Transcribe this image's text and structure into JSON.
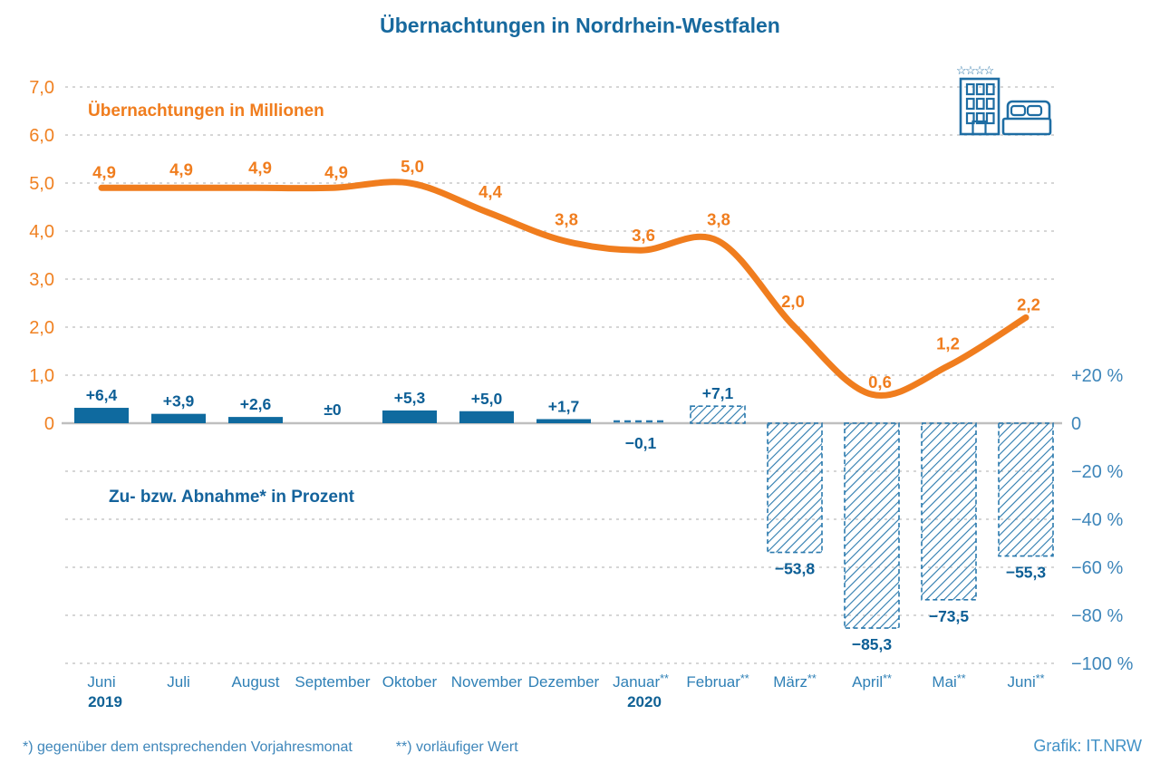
{
  "title": "Übernachtungen in Nordrhein-Westfalen",
  "credit": "Grafik: IT.NRW",
  "footnotes": {
    "first": "*)  gegenüber dem entsprechenden Vorjahresmonat",
    "second": "**)  vorläufiger Wert"
  },
  "icons": {
    "hotel_stars": 4
  },
  "colors": {
    "title_blue": "#17699e",
    "bar_blue": "#0f6a9f",
    "hatch_blue": "#2a79ad",
    "value_label_blue": "#0d5f96",
    "axis_text_blue": "#3e86ba",
    "line_orange": "#f07d1e",
    "axis_text_orange": "#f08122",
    "gridline_gray": "#c9c9c9",
    "zeroline_gray": "#bfbfbf",
    "icon_blue": "#1e6da3",
    "credit_blue": "#4191c6"
  },
  "chart_data": {
    "type": "combo-line-bar",
    "categories": [
      "Juni 2019",
      "Juli",
      "August",
      "September",
      "Oktober",
      "November",
      "Dezember",
      "Januar 2020",
      "Februar",
      "März",
      "April",
      "Mai",
      "Juni"
    ],
    "x_tick_labels": [
      "Juni",
      "Juli",
      "August",
      "September",
      "Oktober",
      "November",
      "Dezember",
      "Januar**",
      "Februar**",
      "März**",
      "April**",
      "Mai**",
      "Juni**"
    ],
    "year_labels": [
      {
        "text": "2019",
        "column": 0
      },
      {
        "text": "2020",
        "column": 7
      }
    ],
    "series": [
      {
        "name": "Übernachtungen in Millionen",
        "type": "line",
        "color": "#f07d1e",
        "values": [
          4.9,
          4.9,
          4.9,
          4.9,
          5.0,
          4.4,
          3.8,
          3.6,
          3.8,
          2.0,
          0.6,
          1.2,
          2.2
        ],
        "point_labels": [
          "4,9",
          "4,9",
          "4,9",
          "4,9",
          "5,0",
          "4,4",
          "3,8",
          "3,6",
          "3,8",
          "2,0",
          "0,6",
          "1,2",
          "2,2"
        ]
      },
      {
        "name": "Zu- bzw. Abnahme* in Prozent",
        "type": "bar",
        "color": "#0f6a9f",
        "values": [
          6.4,
          3.9,
          2.6,
          0,
          5.3,
          5.0,
          1.7,
          -0.1,
          7.1,
          -53.8,
          -85.3,
          -73.5,
          -55.3
        ],
        "bar_labels": [
          "+6,4",
          "+3,9",
          "+2,6",
          "±0",
          "+5,3",
          "+5,0",
          "+1,7",
          "−0,1",
          "+7,1",
          "−53,8",
          "−85,3",
          "−73,5",
          "−55,3"
        ],
        "provisional_hatched": [
          false,
          false,
          false,
          false,
          false,
          false,
          false,
          true,
          true,
          true,
          true,
          true,
          true
        ]
      }
    ],
    "left_axis": {
      "tick_labels": [
        "7,0",
        "6,0",
        "5,0",
        "4,0",
        "3,0",
        "2,0",
        "1,0",
        "0"
      ],
      "range": [
        0,
        7
      ]
    },
    "right_axis": {
      "tick_labels": [
        "+20 %",
        "0",
        "−20 %",
        "−40 %",
        "−60 %",
        "−80 %",
        "−100 %"
      ],
      "range": [
        -100,
        20
      ],
      "unit": "%"
    },
    "grid": true
  }
}
